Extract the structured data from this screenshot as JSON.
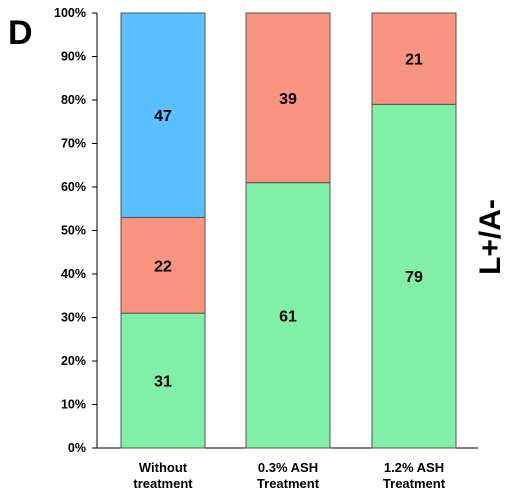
{
  "panel_letter": "D",
  "side_label": "L+/A-",
  "chart_data": {
    "type": "bar",
    "stacked": true,
    "categories": [
      [
        "Without",
        "treatment"
      ],
      [
        "0.3% ASH",
        "Treatment"
      ],
      [
        "1.2% ASH",
        "Treatment"
      ]
    ],
    "series": [
      {
        "color": "#80f0a8",
        "values": [
          31,
          61,
          79
        ]
      },
      {
        "color": "#f99480",
        "values": [
          22,
          39,
          21
        ]
      },
      {
        "color": "#5bc0ff",
        "values": [
          47,
          0,
          0
        ]
      }
    ],
    "ylim": [
      0,
      100
    ],
    "yticks": [
      "0%",
      "10%",
      "20%",
      "30%",
      "40%",
      "50%",
      "60%",
      "70%",
      "80%",
      "90%",
      "100%"
    ],
    "grid": false,
    "data_labels": true
  }
}
